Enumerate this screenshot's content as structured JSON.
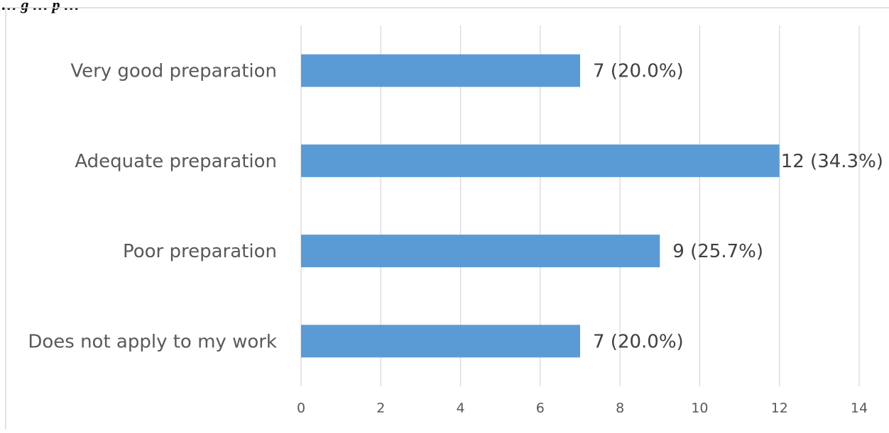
{
  "caption_fragment": "… g … p …",
  "chart_data": {
    "type": "bar",
    "orientation": "horizontal",
    "categories": [
      "Very good preparation",
      "Adequate preparation",
      "Poor preparation",
      "Does not apply to my work"
    ],
    "values": [
      7,
      12,
      9,
      7
    ],
    "data_labels": [
      "7 (20.0%)",
      "12 (34.3%)",
      "9 (25.7%)",
      "7 (20.0%)"
    ],
    "x_ticks": [
      "0",
      "2",
      "4",
      "6",
      "8",
      "10",
      "12",
      "14"
    ],
    "xlim": [
      0,
      14
    ],
    "title": "",
    "xlabel": "",
    "ylabel": "",
    "grid": "vertical",
    "legend": "none",
    "bar_color": "#5b9bd5",
    "grid_color": "#d9d9d9"
  }
}
